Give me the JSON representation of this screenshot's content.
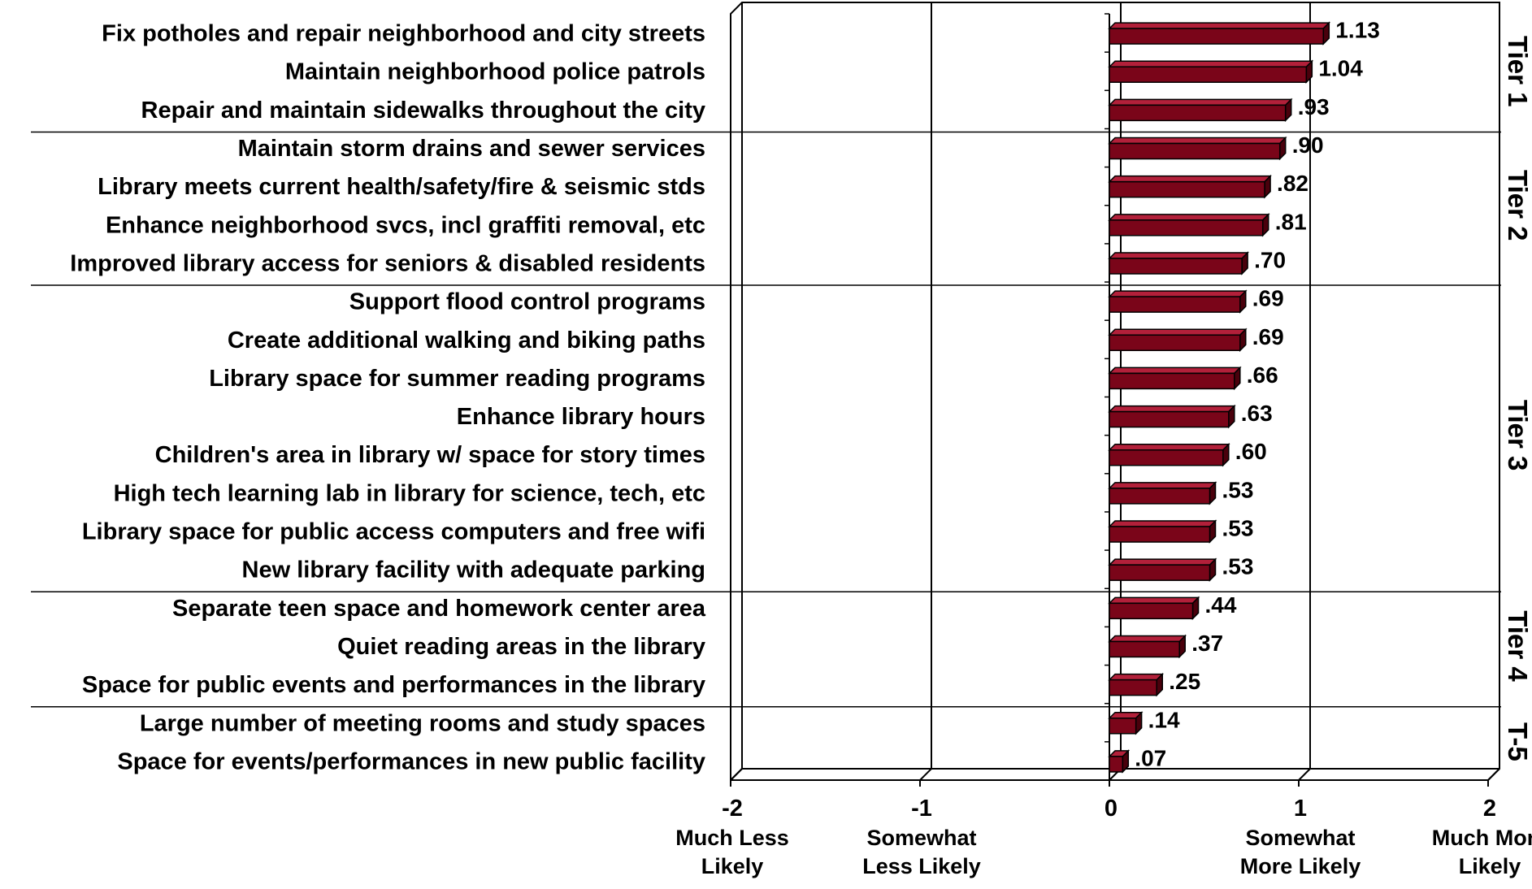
{
  "chart_data": {
    "type": "bar",
    "orientation": "horizontal",
    "categories": [
      "Fix potholes and repair neighborhood and city streets",
      "Maintain neighborhood police patrols",
      "Repair and maintain sidewalks throughout the city",
      "Maintain storm drains and sewer services",
      "Library meets current health/safety/fire & seismic stds",
      "Enhance neighborhood svcs, incl graffiti removal, etc",
      "Improved library access for seniors & disabled residents",
      "Support flood control programs",
      "Create additional walking and biking paths",
      "Library space for summer reading programs",
      "Enhance library hours",
      "Children's area in library w/ space for story times",
      "High tech learning lab in library for science, tech, etc",
      "Library space for public access computers and free wifi",
      "New library facility with adequate parking",
      "Separate teen space and homework center area",
      "Quiet reading areas in the library",
      "Space for public events and performances in the library",
      "Large number of meeting rooms and study spaces",
      "Space for events/performances in new public facility"
    ],
    "values": [
      1.13,
      1.04,
      0.93,
      0.9,
      0.82,
      0.81,
      0.7,
      0.69,
      0.69,
      0.66,
      0.63,
      0.6,
      0.53,
      0.53,
      0.53,
      0.44,
      0.37,
      0.25,
      0.14,
      0.07
    ],
    "value_labels": [
      "1.13",
      "1.04",
      ".93",
      ".90",
      ".82",
      ".81",
      ".70",
      ".69",
      ".69",
      ".66",
      ".63",
      ".60",
      ".53",
      ".53",
      ".53",
      ".44",
      ".37",
      ".25",
      ".14",
      ".07"
    ],
    "xlim": [
      -2,
      2
    ],
    "x_ticks": [
      -2,
      -1,
      0,
      1,
      2
    ],
    "x_tick_labels": [
      "-2",
      "-1",
      "0",
      "1",
      "2"
    ],
    "x_tick_descriptions": [
      [
        "Much Less",
        "Likely"
      ],
      [
        "Somewhat",
        "Less Likely"
      ],
      [],
      [
        "Somewhat",
        "More Likely"
      ],
      [
        "Much More",
        "Likely"
      ]
    ],
    "tiers": [
      {
        "label": "Tier 1",
        "start": 0,
        "end": 2
      },
      {
        "label": "Tier 2",
        "start": 3,
        "end": 6
      },
      {
        "label": "Tier 3",
        "start": 7,
        "end": 14
      },
      {
        "label": "Tier 4",
        "start": 15,
        "end": 17
      },
      {
        "label": "T-5",
        "start": 18,
        "end": 19
      }
    ],
    "bar_color": "#7a0519",
    "bar_top_color": "#b3203a",
    "bar_side_color": "#4a000c",
    "grid": true,
    "legend": "none"
  }
}
